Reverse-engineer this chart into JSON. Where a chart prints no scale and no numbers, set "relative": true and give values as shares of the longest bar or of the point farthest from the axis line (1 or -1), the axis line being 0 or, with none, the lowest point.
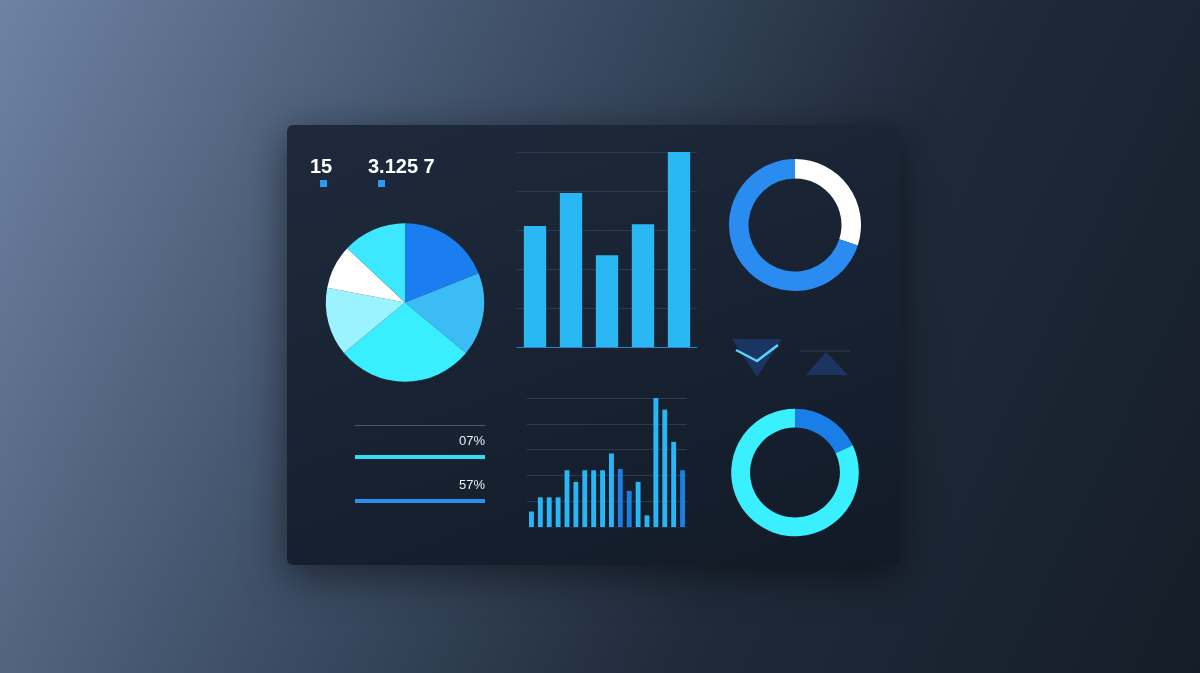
{
  "chart_data": [
    {
      "type": "other",
      "annotations": [
        "15",
        "3.125 7"
      ]
    },
    {
      "type": "bar",
      "relative": true,
      "grid": "y",
      "color": "#2ab8f5",
      "categories": [
        null,
        null,
        null,
        null,
        null
      ],
      "values": [
        0.62,
        0.79,
        0.47,
        0.63,
        1
      ]
    },
    {
      "type": "donut",
      "categories": [
        null,
        null
      ],
      "values": [
        30,
        70
      ],
      "colors": [
        "#ffffff",
        "#2a8cf0"
      ]
    },
    {
      "type": "pie",
      "categories": [
        null,
        null,
        null,
        null,
        null,
        null
      ],
      "values": [
        19,
        17,
        28,
        14,
        9,
        13
      ],
      "colors": [
        "#1a7ef0",
        "#3bbcf5",
        "#38eeff",
        "#9af3ff",
        "#ffffff",
        "#3de8ff"
      ]
    },
    {
      "type": "bar",
      "relative": true,
      "grid": "y",
      "categories": [
        null,
        null,
        null,
        null,
        null,
        null,
        null,
        null,
        null,
        null,
        null,
        null,
        null,
        null,
        null,
        null,
        null,
        null
      ],
      "values": [
        0.12,
        0.23,
        0.23,
        0.23,
        0.44,
        0.35,
        0.44,
        0.44,
        0.44,
        0.57,
        0.45,
        0.28,
        0.35,
        0.09,
        1,
        0.91,
        0.66,
        0.44
      ],
      "colors": [
        "#29b6f6",
        "#29b6f6",
        "#29b6f6",
        "#29b6f6",
        "#29b6f6",
        "#29b6f6",
        "#29b6f6",
        "#29b6f6",
        "#29b6f6",
        "#29b6f6",
        "#1a7fe0",
        "#1a7fe0",
        "#29b6f6",
        "#29b6f6",
        "#29b6f6",
        "#29b6f6",
        "#29b6f6",
        "#1a7fe0"
      ]
    },
    {
      "type": "donut",
      "categories": [
        null,
        null
      ],
      "values": [
        18,
        82
      ],
      "colors": [
        "#1a7ee8",
        "#3af0ff"
      ]
    },
    {
      "type": "other",
      "annotations": [
        "07%",
        "57%"
      ]
    }
  ]
}
